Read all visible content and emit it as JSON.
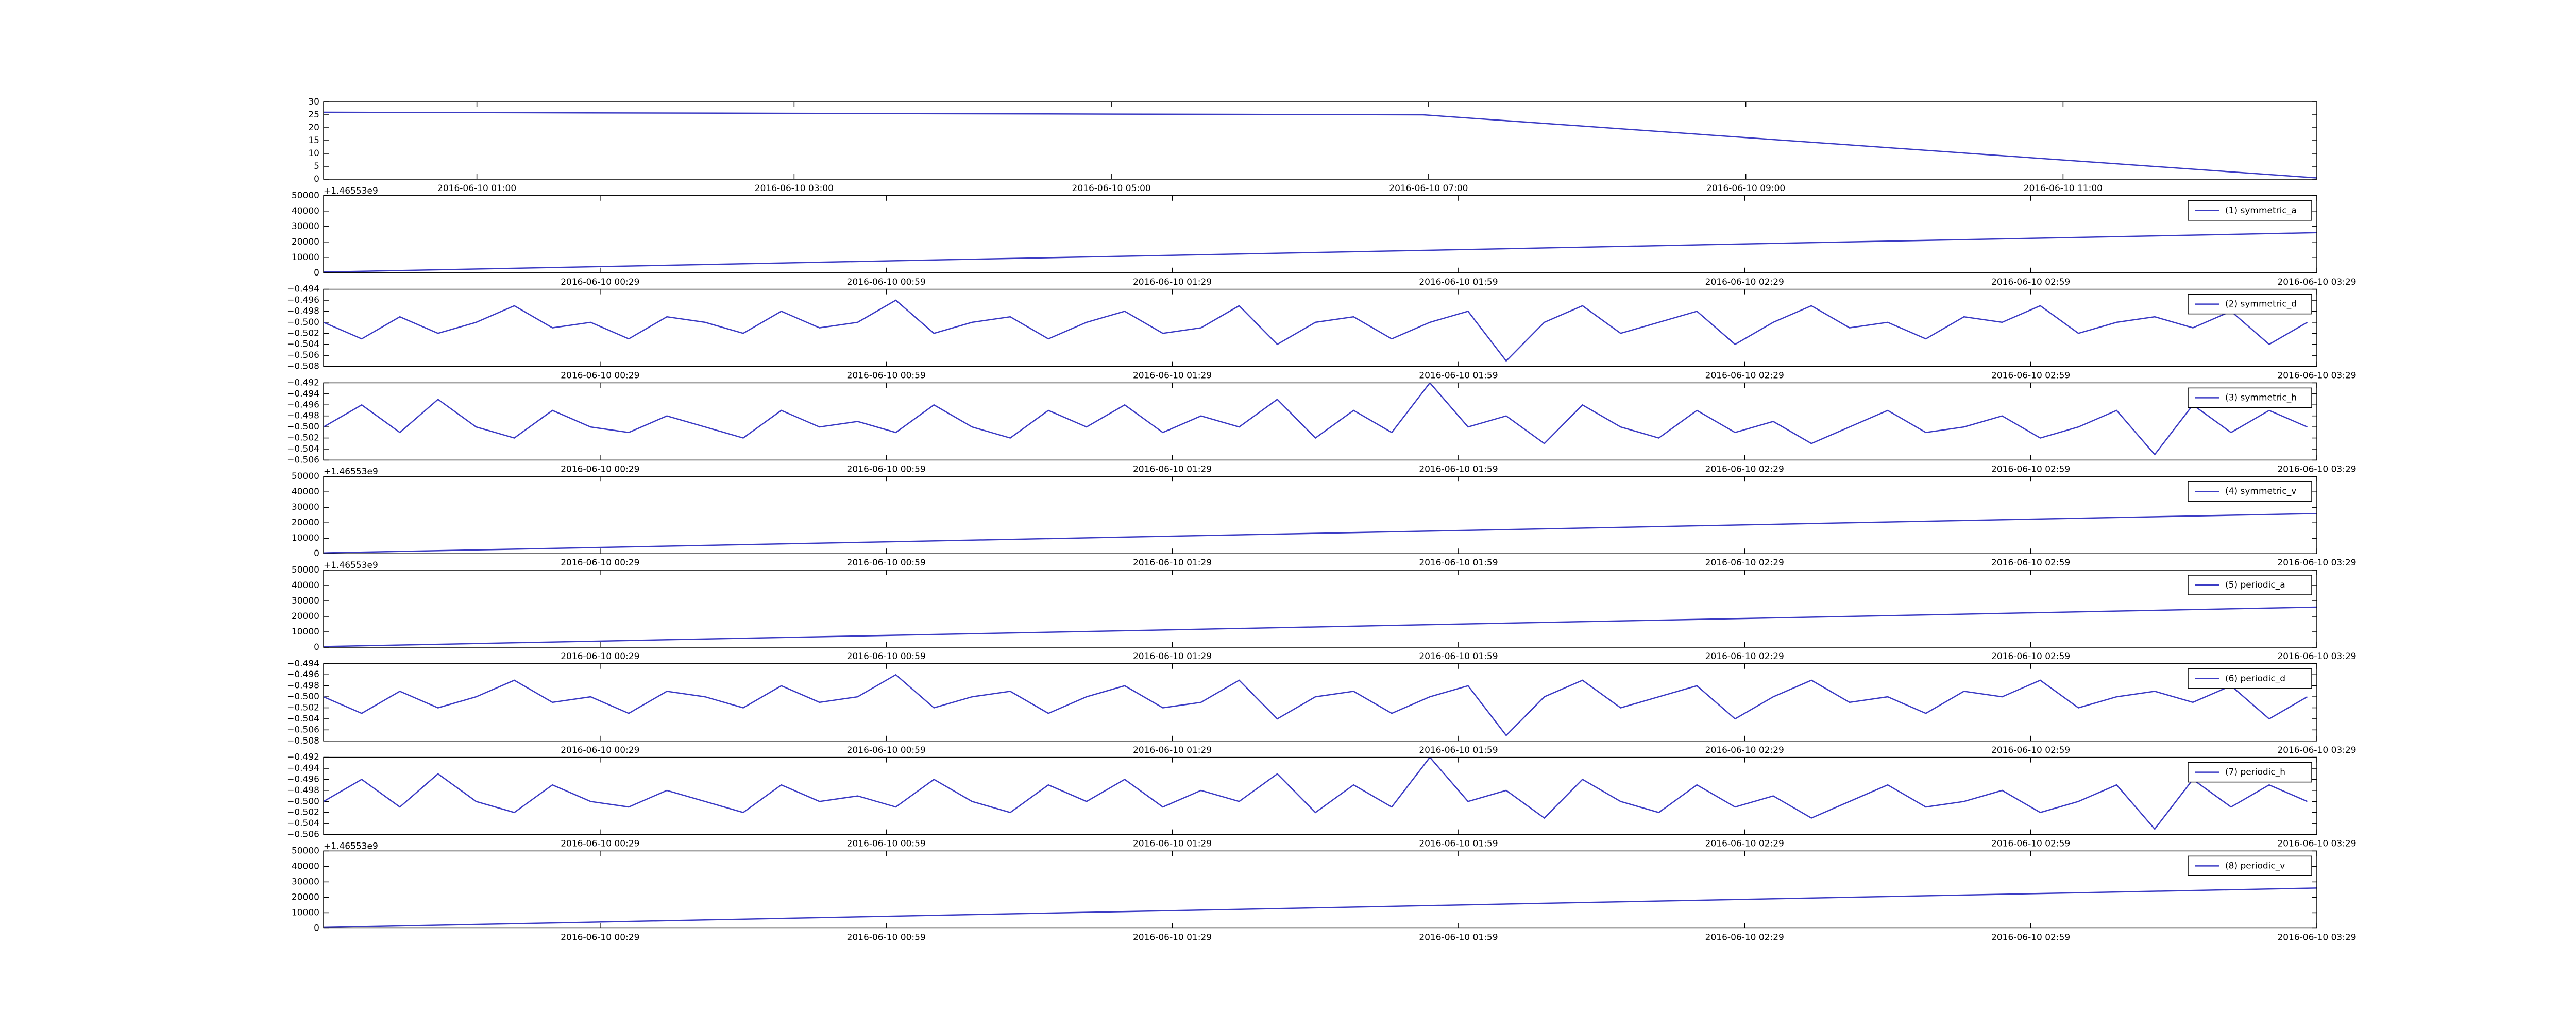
{
  "chart_data": [
    {
      "type": "line",
      "x": [
        "2016-06-10 00:02",
        "2016-06-10 06:58",
        "2016-06-10 12:36"
      ],
      "xlim": [
        "2016-06-10 00:02",
        "2016-06-10 12:36"
      ],
      "xticks": [
        "2016-06-10 01:00",
        "2016-06-10 03:00",
        "2016-06-10 05:00",
        "2016-06-10 07:00",
        "2016-06-10 09:00",
        "2016-06-10 11:00"
      ],
      "ylim": [
        0,
        30
      ],
      "yticks": [
        0,
        5,
        10,
        15,
        20,
        25,
        30
      ],
      "series": [
        {
          "color": "#3b3bc4",
          "values": [
            26,
            25,
            0.5
          ]
        }
      ],
      "legend": false
    },
    {
      "type": "line",
      "x": [
        "2016-06-10 00:00",
        "2016-06-10 03:29"
      ],
      "xlim": [
        "2016-06-10 00:00",
        "2016-06-10 03:29"
      ],
      "xticks": [
        "2016-06-10 00:29",
        "2016-06-10 00:59",
        "2016-06-10 01:29",
        "2016-06-10 01:59",
        "2016-06-10 02:29",
        "2016-06-10 02:59",
        "2016-06-10 03:29"
      ],
      "ylim": [
        0,
        50000
      ],
      "yticks": [
        0,
        10000,
        20000,
        30000,
        40000,
        50000
      ],
      "y_offset_label": "+1.46553e9",
      "series": [
        {
          "name": "(1) symmetric_a",
          "color": "#3b3bc4",
          "values": [
            500,
            26000
          ]
        }
      ],
      "legend": "upper right"
    },
    {
      "type": "line",
      "x": [
        "2016-06-10 00:00",
        "2016-06-10 00:04",
        "2016-06-10 00:08",
        "2016-06-10 00:12",
        "2016-06-10 00:16",
        "2016-06-10 00:20",
        "2016-06-10 00:24",
        "2016-06-10 00:28",
        "2016-06-10 00:32",
        "2016-06-10 00:36",
        "2016-06-10 00:40",
        "2016-06-10 00:44",
        "2016-06-10 00:48",
        "2016-06-10 00:52",
        "2016-06-10 00:56",
        "2016-06-10 01:00",
        "2016-06-10 01:04",
        "2016-06-10 01:08",
        "2016-06-10 01:12",
        "2016-06-10 01:16",
        "2016-06-10 01:20",
        "2016-06-10 01:24",
        "2016-06-10 01:28",
        "2016-06-10 01:32",
        "2016-06-10 01:36",
        "2016-06-10 01:40",
        "2016-06-10 01:44",
        "2016-06-10 01:48",
        "2016-06-10 01:52",
        "2016-06-10 01:56",
        "2016-06-10 02:00",
        "2016-06-10 02:04",
        "2016-06-10 02:08",
        "2016-06-10 02:12",
        "2016-06-10 02:16",
        "2016-06-10 02:20",
        "2016-06-10 02:24",
        "2016-06-10 02:28",
        "2016-06-10 02:32",
        "2016-06-10 02:36",
        "2016-06-10 02:40",
        "2016-06-10 02:44",
        "2016-06-10 02:48",
        "2016-06-10 02:52",
        "2016-06-10 02:56",
        "2016-06-10 03:00",
        "2016-06-10 03:04",
        "2016-06-10 03:08",
        "2016-06-10 03:12",
        "2016-06-10 03:16",
        "2016-06-10 03:20",
        "2016-06-10 03:24",
        "2016-06-10 03:28"
      ],
      "xlim": [
        "2016-06-10 00:00",
        "2016-06-10 03:29"
      ],
      "xticks": [
        "2016-06-10 00:29",
        "2016-06-10 00:59",
        "2016-06-10 01:29",
        "2016-06-10 01:59",
        "2016-06-10 02:29",
        "2016-06-10 02:59",
        "2016-06-10 03:29"
      ],
      "ylim": [
        -0.508,
        -0.494
      ],
      "yticks": [
        {
          "value": -0.508,
          "label": "−0.508"
        },
        {
          "value": -0.506,
          "label": "−0.506"
        },
        {
          "value": -0.504,
          "label": "−0.504"
        },
        {
          "value": -0.502,
          "label": "−0.502"
        },
        {
          "value": -0.5,
          "label": "−0.500"
        },
        {
          "value": -0.498,
          "label": "−0.498"
        },
        {
          "value": -0.496,
          "label": "−0.496"
        },
        {
          "value": -0.494,
          "label": "−0.494"
        }
      ],
      "series": [
        {
          "name": "(2) symmetric_d",
          "color": "#3b3bc4",
          "values": [
            -0.5,
            -0.503,
            -0.499,
            -0.502,
            -0.5,
            -0.497,
            -0.501,
            -0.5,
            -0.503,
            -0.499,
            -0.5,
            -0.502,
            -0.498,
            -0.501,
            -0.5,
            -0.496,
            -0.502,
            -0.5,
            -0.499,
            -0.503,
            -0.5,
            -0.498,
            -0.502,
            -0.501,
            -0.497,
            -0.504,
            -0.5,
            -0.499,
            -0.503,
            -0.5,
            -0.498,
            -0.507,
            -0.5,
            -0.497,
            -0.502,
            -0.5,
            -0.498,
            -0.504,
            -0.5,
            -0.497,
            -0.501,
            -0.5,
            -0.503,
            -0.499,
            -0.5,
            -0.497,
            -0.502,
            -0.5,
            -0.499,
            -0.501,
            -0.498,
            -0.504,
            -0.5
          ]
        }
      ],
      "legend": "upper right"
    },
    {
      "type": "line",
      "x": [
        "2016-06-10 00:00",
        "2016-06-10 00:04",
        "2016-06-10 00:08",
        "2016-06-10 00:12",
        "2016-06-10 00:16",
        "2016-06-10 00:20",
        "2016-06-10 00:24",
        "2016-06-10 00:28",
        "2016-06-10 00:32",
        "2016-06-10 00:36",
        "2016-06-10 00:40",
        "2016-06-10 00:44",
        "2016-06-10 00:48",
        "2016-06-10 00:52",
        "2016-06-10 00:56",
        "2016-06-10 01:00",
        "2016-06-10 01:04",
        "2016-06-10 01:08",
        "2016-06-10 01:12",
        "2016-06-10 01:16",
        "2016-06-10 01:20",
        "2016-06-10 01:24",
        "2016-06-10 01:28",
        "2016-06-10 01:32",
        "2016-06-10 01:36",
        "2016-06-10 01:40",
        "2016-06-10 01:44",
        "2016-06-10 01:48",
        "2016-06-10 01:52",
        "2016-06-10 01:56",
        "2016-06-10 02:00",
        "2016-06-10 02:04",
        "2016-06-10 02:08",
        "2016-06-10 02:12",
        "2016-06-10 02:16",
        "2016-06-10 02:20",
        "2016-06-10 02:24",
        "2016-06-10 02:28",
        "2016-06-10 02:32",
        "2016-06-10 02:36",
        "2016-06-10 02:40",
        "2016-06-10 02:44",
        "2016-06-10 02:48",
        "2016-06-10 02:52",
        "2016-06-10 02:56",
        "2016-06-10 03:00",
        "2016-06-10 03:04",
        "2016-06-10 03:08",
        "2016-06-10 03:12",
        "2016-06-10 03:16",
        "2016-06-10 03:20",
        "2016-06-10 03:24",
        "2016-06-10 03:28"
      ],
      "xlim": [
        "2016-06-10 00:00",
        "2016-06-10 03:29"
      ],
      "xticks": [
        "2016-06-10 00:29",
        "2016-06-10 00:59",
        "2016-06-10 01:29",
        "2016-06-10 01:59",
        "2016-06-10 02:29",
        "2016-06-10 02:59",
        "2016-06-10 03:29"
      ],
      "ylim": [
        -0.506,
        -0.492
      ],
      "yticks": [
        {
          "value": -0.506,
          "label": "−0.506"
        },
        {
          "value": -0.504,
          "label": "−0.504"
        },
        {
          "value": -0.502,
          "label": "−0.502"
        },
        {
          "value": -0.5,
          "label": "−0.500"
        },
        {
          "value": -0.498,
          "label": "−0.498"
        },
        {
          "value": -0.496,
          "label": "−0.496"
        },
        {
          "value": -0.494,
          "label": "−0.494"
        },
        {
          "value": -0.492,
          "label": "−0.492"
        }
      ],
      "series": [
        {
          "name": "(3) symmetric_h",
          "color": "#3b3bc4",
          "values": [
            -0.5,
            -0.496,
            -0.501,
            -0.495,
            -0.5,
            -0.502,
            -0.497,
            -0.5,
            -0.501,
            -0.498,
            -0.5,
            -0.502,
            -0.497,
            -0.5,
            -0.499,
            -0.501,
            -0.496,
            -0.5,
            -0.502,
            -0.497,
            -0.5,
            -0.496,
            -0.501,
            -0.498,
            -0.5,
            -0.495,
            -0.502,
            -0.497,
            -0.501,
            -0.492,
            -0.5,
            -0.498,
            -0.503,
            -0.496,
            -0.5,
            -0.502,
            -0.497,
            -0.501,
            -0.499,
            -0.503,
            -0.5,
            -0.497,
            -0.501,
            -0.5,
            -0.498,
            -0.502,
            -0.5,
            -0.497,
            -0.505,
            -0.496,
            -0.501,
            -0.497,
            -0.5
          ]
        }
      ],
      "legend": "upper right"
    },
    {
      "type": "line",
      "x": [
        "2016-06-10 00:00",
        "2016-06-10 03:29"
      ],
      "xlim": [
        "2016-06-10 00:00",
        "2016-06-10 03:29"
      ],
      "xticks": [
        "2016-06-10 00:29",
        "2016-06-10 00:59",
        "2016-06-10 01:29",
        "2016-06-10 01:59",
        "2016-06-10 02:29",
        "2016-06-10 02:59",
        "2016-06-10 03:29"
      ],
      "ylim": [
        0,
        50000
      ],
      "yticks": [
        0,
        10000,
        20000,
        30000,
        40000,
        50000
      ],
      "y_offset_label": "+1.46553e9",
      "series": [
        {
          "name": "(4) symmetric_v",
          "color": "#3b3bc4",
          "values": [
            500,
            26000
          ]
        }
      ],
      "legend": "upper right"
    },
    {
      "type": "line",
      "x": [
        "2016-06-10 00:00",
        "2016-06-10 03:29"
      ],
      "xlim": [
        "2016-06-10 00:00",
        "2016-06-10 03:29"
      ],
      "xticks": [
        "2016-06-10 00:29",
        "2016-06-10 00:59",
        "2016-06-10 01:29",
        "2016-06-10 01:59",
        "2016-06-10 02:29",
        "2016-06-10 02:59",
        "2016-06-10 03:29"
      ],
      "ylim": [
        0,
        50000
      ],
      "yticks": [
        0,
        10000,
        20000,
        30000,
        40000,
        50000
      ],
      "y_offset_label": "+1.46553e9",
      "series": [
        {
          "name": "(5) periodic_a",
          "color": "#3b3bc4",
          "values": [
            500,
            26000
          ]
        }
      ],
      "legend": "upper right"
    },
    {
      "type": "line",
      "x": [
        "2016-06-10 00:00",
        "2016-06-10 00:04",
        "2016-06-10 00:08",
        "2016-06-10 00:12",
        "2016-06-10 00:16",
        "2016-06-10 00:20",
        "2016-06-10 00:24",
        "2016-06-10 00:28",
        "2016-06-10 00:32",
        "2016-06-10 00:36",
        "2016-06-10 00:40",
        "2016-06-10 00:44",
        "2016-06-10 00:48",
        "2016-06-10 00:52",
        "2016-06-10 00:56",
        "2016-06-10 01:00",
        "2016-06-10 01:04",
        "2016-06-10 01:08",
        "2016-06-10 01:12",
        "2016-06-10 01:16",
        "2016-06-10 01:20",
        "2016-06-10 01:24",
        "2016-06-10 01:28",
        "2016-06-10 01:32",
        "2016-06-10 01:36",
        "2016-06-10 01:40",
        "2016-06-10 01:44",
        "2016-06-10 01:48",
        "2016-06-10 01:52",
        "2016-06-10 01:56",
        "2016-06-10 02:00",
        "2016-06-10 02:04",
        "2016-06-10 02:08",
        "2016-06-10 02:12",
        "2016-06-10 02:16",
        "2016-06-10 02:20",
        "2016-06-10 02:24",
        "2016-06-10 02:28",
        "2016-06-10 02:32",
        "2016-06-10 02:36",
        "2016-06-10 02:40",
        "2016-06-10 02:44",
        "2016-06-10 02:48",
        "2016-06-10 02:52",
        "2016-06-10 02:56",
        "2016-06-10 03:00",
        "2016-06-10 03:04",
        "2016-06-10 03:08",
        "2016-06-10 03:12",
        "2016-06-10 03:16",
        "2016-06-10 03:20",
        "2016-06-10 03:24",
        "2016-06-10 03:28"
      ],
      "xlim": [
        "2016-06-10 00:00",
        "2016-06-10 03:29"
      ],
      "xticks": [
        "2016-06-10 00:29",
        "2016-06-10 00:59",
        "2016-06-10 01:29",
        "2016-06-10 01:59",
        "2016-06-10 02:29",
        "2016-06-10 02:59",
        "2016-06-10 03:29"
      ],
      "ylim": [
        -0.508,
        -0.494
      ],
      "yticks": [
        {
          "value": -0.508,
          "label": "−0.508"
        },
        {
          "value": -0.506,
          "label": "−0.506"
        },
        {
          "value": -0.504,
          "label": "−0.504"
        },
        {
          "value": -0.502,
          "label": "−0.502"
        },
        {
          "value": -0.5,
          "label": "−0.500"
        },
        {
          "value": -0.498,
          "label": "−0.498"
        },
        {
          "value": -0.496,
          "label": "−0.496"
        },
        {
          "value": -0.494,
          "label": "−0.494"
        }
      ],
      "series": [
        {
          "name": "(6) periodic_d",
          "color": "#3b3bc4",
          "values": [
            -0.5,
            -0.503,
            -0.499,
            -0.502,
            -0.5,
            -0.497,
            -0.501,
            -0.5,
            -0.503,
            -0.499,
            -0.5,
            -0.502,
            -0.498,
            -0.501,
            -0.5,
            -0.496,
            -0.502,
            -0.5,
            -0.499,
            -0.503,
            -0.5,
            -0.498,
            -0.502,
            -0.501,
            -0.497,
            -0.504,
            -0.5,
            -0.499,
            -0.503,
            -0.5,
            -0.498,
            -0.507,
            -0.5,
            -0.497,
            -0.502,
            -0.5,
            -0.498,
            -0.504,
            -0.5,
            -0.497,
            -0.501,
            -0.5,
            -0.503,
            -0.499,
            -0.5,
            -0.497,
            -0.502,
            -0.5,
            -0.499,
            -0.501,
            -0.498,
            -0.504,
            -0.5
          ]
        }
      ],
      "legend": "upper right"
    },
    {
      "type": "line",
      "x": [
        "2016-06-10 00:00",
        "2016-06-10 00:04",
        "2016-06-10 00:08",
        "2016-06-10 00:12",
        "2016-06-10 00:16",
        "2016-06-10 00:20",
        "2016-06-10 00:24",
        "2016-06-10 00:28",
        "2016-06-10 00:32",
        "2016-06-10 00:36",
        "2016-06-10 00:40",
        "2016-06-10 00:44",
        "2016-06-10 00:48",
        "2016-06-10 00:52",
        "2016-06-10 00:56",
        "2016-06-10 01:00",
        "2016-06-10 01:04",
        "2016-06-10 01:08",
        "2016-06-10 01:12",
        "2016-06-10 01:16",
        "2016-06-10 01:20",
        "2016-06-10 01:24",
        "2016-06-10 01:28",
        "2016-06-10 01:32",
        "2016-06-10 01:36",
        "2016-06-10 01:40",
        "2016-06-10 01:44",
        "2016-06-10 01:48",
        "2016-06-10 01:52",
        "2016-06-10 01:56",
        "2016-06-10 02:00",
        "2016-06-10 02:04",
        "2016-06-10 02:08",
        "2016-06-10 02:12",
        "2016-06-10 02:16",
        "2016-06-10 02:20",
        "2016-06-10 02:24",
        "2016-06-10 02:28",
        "2016-06-10 02:32",
        "2016-06-10 02:36",
        "2016-06-10 02:40",
        "2016-06-10 02:44",
        "2016-06-10 02:48",
        "2016-06-10 02:52",
        "2016-06-10 02:56",
        "2016-06-10 03:00",
        "2016-06-10 03:04",
        "2016-06-10 03:08",
        "2016-06-10 03:12",
        "2016-06-10 03:16",
        "2016-06-10 03:20",
        "2016-06-10 03:24",
        "2016-06-10 03:28"
      ],
      "xlim": [
        "2016-06-10 00:00",
        "2016-06-10 03:29"
      ],
      "xticks": [
        "2016-06-10 00:29",
        "2016-06-10 00:59",
        "2016-06-10 01:29",
        "2016-06-10 01:59",
        "2016-06-10 02:29",
        "2016-06-10 02:59",
        "2016-06-10 03:29"
      ],
      "ylim": [
        -0.506,
        -0.492
      ],
      "yticks": [
        {
          "value": -0.506,
          "label": "−0.506"
        },
        {
          "value": -0.504,
          "label": "−0.504"
        },
        {
          "value": -0.502,
          "label": "−0.502"
        },
        {
          "value": -0.5,
          "label": "−0.500"
        },
        {
          "value": -0.498,
          "label": "−0.498"
        },
        {
          "value": -0.496,
          "label": "−0.496"
        },
        {
          "value": -0.494,
          "label": "−0.494"
        },
        {
          "value": -0.492,
          "label": "−0.492"
        }
      ],
      "series": [
        {
          "name": "(7) periodic_h",
          "color": "#3b3bc4",
          "values": [
            -0.5,
            -0.496,
            -0.501,
            -0.495,
            -0.5,
            -0.502,
            -0.497,
            -0.5,
            -0.501,
            -0.498,
            -0.5,
            -0.502,
            -0.497,
            -0.5,
            -0.499,
            -0.501,
            -0.496,
            -0.5,
            -0.502,
            -0.497,
            -0.5,
            -0.496,
            -0.501,
            -0.498,
            -0.5,
            -0.495,
            -0.502,
            -0.497,
            -0.501,
            -0.492,
            -0.5,
            -0.498,
            -0.503,
            -0.496,
            -0.5,
            -0.502,
            -0.497,
            -0.501,
            -0.499,
            -0.503,
            -0.5,
            -0.497,
            -0.501,
            -0.5,
            -0.498,
            -0.502,
            -0.5,
            -0.497,
            -0.505,
            -0.496,
            -0.501,
            -0.497,
            -0.5
          ]
        }
      ],
      "legend": "upper right"
    },
    {
      "type": "line",
      "x": [
        "2016-06-10 00:00",
        "2016-06-10 03:29"
      ],
      "xlim": [
        "2016-06-10 00:00",
        "2016-06-10 03:29"
      ],
      "xticks": [
        "2016-06-10 00:29",
        "2016-06-10 00:59",
        "2016-06-10 01:29",
        "2016-06-10 01:59",
        "2016-06-10 02:29",
        "2016-06-10 02:59",
        "2016-06-10 03:29"
      ],
      "ylim": [
        0,
        50000
      ],
      "yticks": [
        0,
        10000,
        20000,
        30000,
        40000,
        50000
      ],
      "y_offset_label": "+1.46553e9",
      "series": [
        {
          "name": "(8) periodic_v",
          "color": "#3b3bc4",
          "values": [
            500,
            26000
          ]
        }
      ],
      "legend": "upper right"
    }
  ]
}
